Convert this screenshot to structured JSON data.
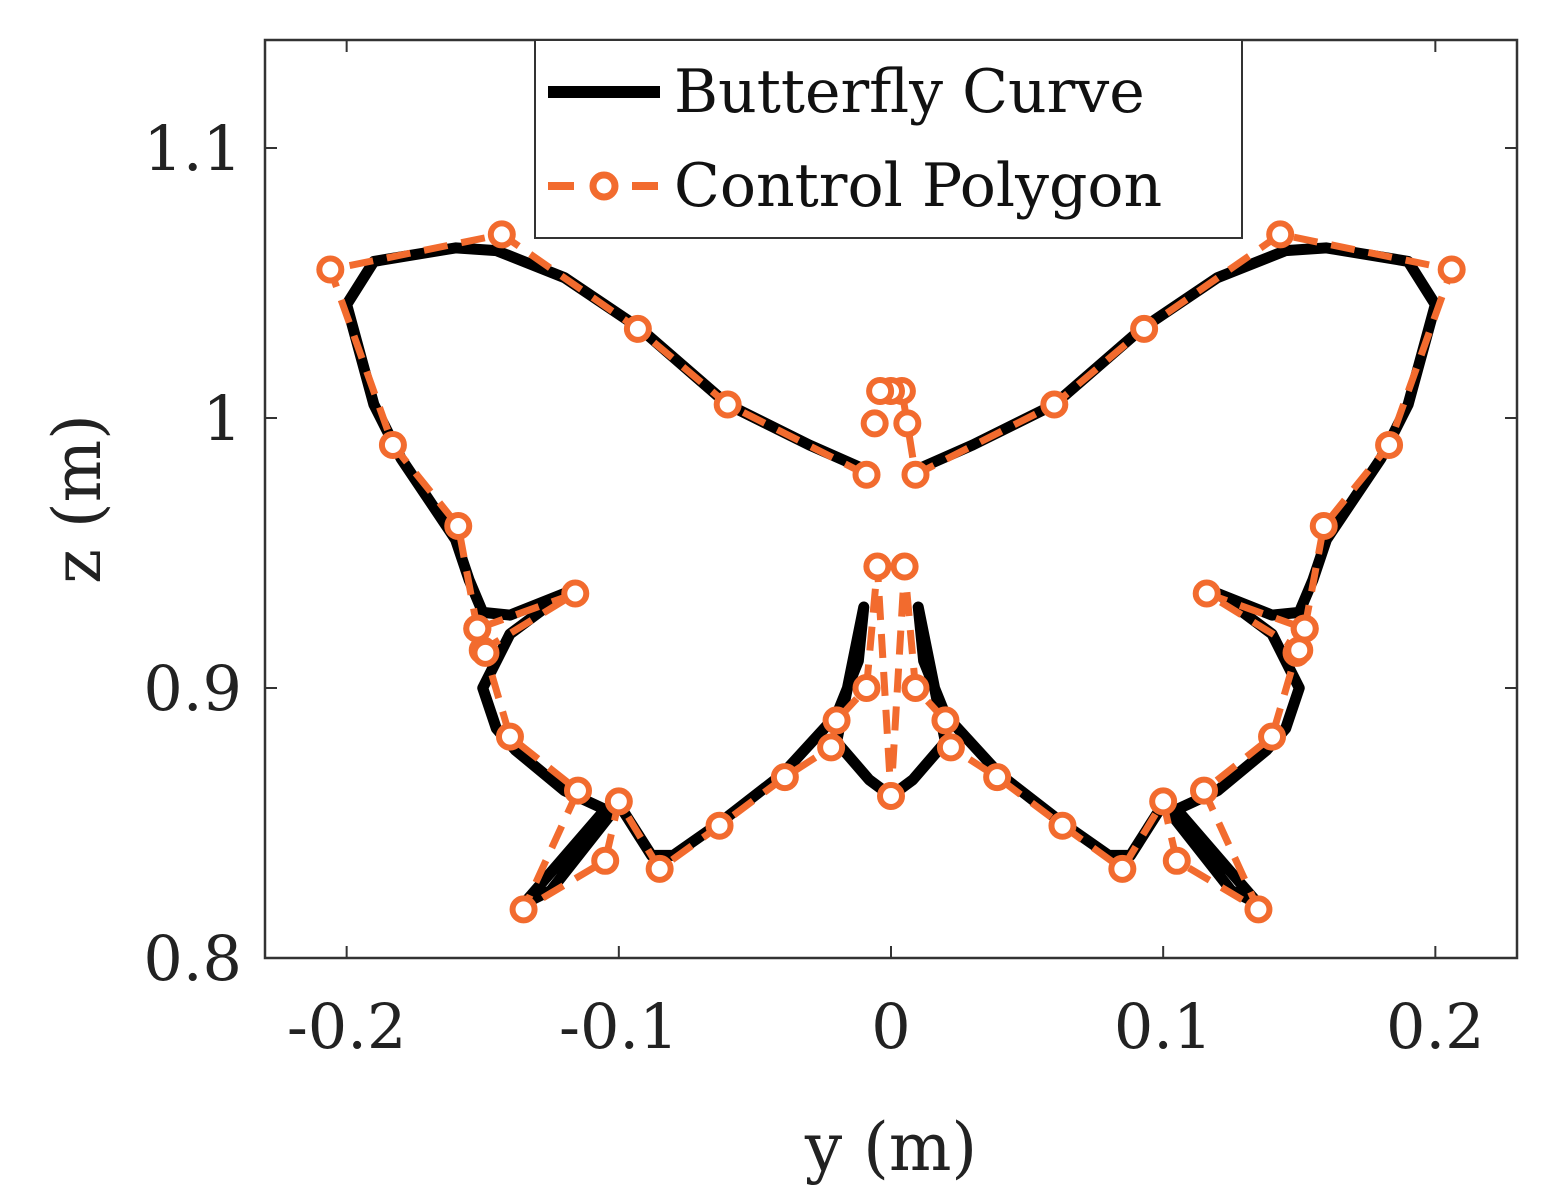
{
  "chart_data": {
    "type": "line",
    "title": "",
    "xlabel": "y (m)",
    "ylabel": "z (m)",
    "xlim": [
      -0.23,
      0.23
    ],
    "ylim": [
      0.8,
      1.14
    ],
    "xticks": [
      -0.2,
      -0.1,
      0,
      0.1,
      0.2
    ],
    "xtick_labels": [
      "-0.2",
      "-0.1",
      "0",
      "0.1",
      "0.2"
    ],
    "yticks": [
      0.8,
      0.9,
      1.0,
      1.1
    ],
    "ytick_labels": [
      "0.8",
      "0.9",
      "1",
      "1.1"
    ],
    "grid": false,
    "legend_position": "top-center",
    "colors": {
      "curve": "#000000",
      "polygon": "#f26b2e"
    },
    "series": [
      {
        "name": "Butterfly Curve",
        "style": "solid",
        "x": [
          -0.012,
          -0.03,
          -0.06,
          -0.092,
          -0.12,
          -0.145,
          -0.16,
          -0.19,
          -0.2,
          -0.19,
          -0.18,
          -0.16,
          -0.155,
          -0.15,
          -0.14,
          -0.12,
          -0.14,
          -0.15,
          -0.145,
          -0.138,
          -0.12,
          -0.105,
          -0.135,
          -0.125,
          -0.1,
          -0.088,
          -0.08,
          -0.063,
          -0.04,
          -0.02,
          -0.012,
          -0.01,
          -0.02,
          -0.008,
          0,
          0.008,
          0.02,
          0.01,
          0.012,
          0.02,
          0.04,
          0.063,
          0.08,
          0.088,
          0.1,
          0.125,
          0.135,
          0.105,
          0.12,
          0.138,
          0.145,
          0.15,
          0.14,
          0.12,
          0.14,
          0.15,
          0.155,
          0.16,
          0.18,
          0.19,
          0.2,
          0.19,
          0.16,
          0.145,
          0.12,
          0.092,
          0.06,
          0.03,
          0.012
        ],
        "y": [
          0.982,
          0.99,
          1.005,
          1.033,
          1.052,
          1.062,
          1.063,
          1.058,
          1.042,
          1.005,
          0.985,
          0.955,
          0.94,
          0.928,
          0.927,
          0.935,
          0.92,
          0.9,
          0.885,
          0.877,
          0.862,
          0.855,
          0.82,
          0.825,
          0.857,
          0.838,
          0.838,
          0.85,
          0.868,
          0.89,
          0.91,
          0.93,
          0.88,
          0.866,
          0.86,
          0.866,
          0.88,
          0.93,
          0.91,
          0.89,
          0.868,
          0.85,
          0.838,
          0.838,
          0.857,
          0.825,
          0.82,
          0.855,
          0.862,
          0.877,
          0.885,
          0.9,
          0.92,
          0.935,
          0.927,
          0.928,
          0.94,
          0.955,
          0.985,
          1.005,
          1.042,
          1.058,
          1.063,
          1.062,
          1.052,
          1.033,
          1.005,
          0.99,
          0.982
        ]
      },
      {
        "name": "Control Polygon",
        "style": "dashed-circle-markers",
        "x": [
          -0.009,
          -0.06,
          -0.093,
          -0.143,
          -0.206,
          -0.183,
          -0.159,
          -0.152,
          -0.15,
          -0.116,
          -0.152,
          -0.149,
          -0.14,
          -0.115,
          -0.135,
          -0.105,
          -0.1,
          -0.085,
          -0.063,
          -0.039,
          -0.022,
          -0.02,
          -0.009,
          -0.005,
          0,
          0.005,
          0.009,
          0.02,
          0.022,
          0.039,
          0.063,
          0.085,
          0.1,
          0.105,
          0.135,
          0.115,
          0.14,
          0.149,
          0.152,
          0.116,
          0.15,
          0.152,
          0.159,
          0.183,
          0.206,
          0.143,
          0.093,
          0.06,
          0.009,
          0.006,
          0.004,
          0.0,
          -0.004,
          -0.006
        ],
        "y": [
          0.979,
          1.005,
          1.033,
          1.068,
          1.055,
          0.99,
          0.96,
          0.922,
          0.914,
          0.935,
          0.922,
          0.913,
          0.882,
          0.862,
          0.818,
          0.836,
          0.858,
          0.833,
          0.849,
          0.867,
          0.878,
          0.888,
          0.9,
          0.945,
          0.86,
          0.945,
          0.9,
          0.888,
          0.878,
          0.867,
          0.849,
          0.833,
          0.858,
          0.836,
          0.818,
          0.862,
          0.882,
          0.913,
          0.922,
          0.935,
          0.914,
          0.922,
          0.96,
          0.99,
          1.055,
          1.068,
          1.033,
          1.005,
          0.979,
          0.998,
          1.01,
          1.01,
          1.01,
          0.998
        ]
      }
    ]
  },
  "legend": {
    "items": [
      {
        "label": "Butterfly Curve"
      },
      {
        "label": "Control Polygon"
      }
    ]
  }
}
